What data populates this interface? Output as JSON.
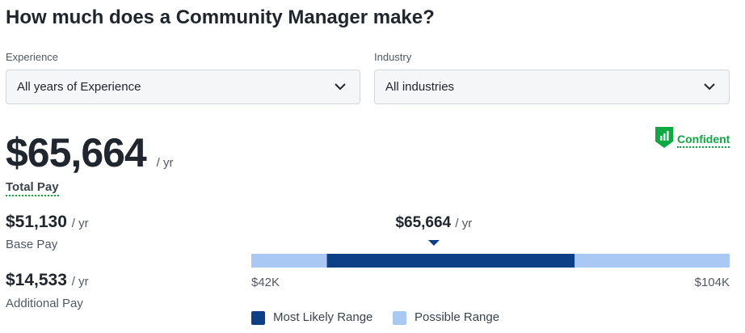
{
  "header": {
    "title": "How much does a Community Manager make?"
  },
  "filters": [
    {
      "label": "Experience",
      "value": "All years of Experience"
    },
    {
      "label": "Industry",
      "value": "All industries"
    }
  ],
  "confidence": "Confident",
  "total": {
    "amount": "$65,664",
    "unit": "/ yr",
    "label": "Total Pay"
  },
  "breakdown": [
    {
      "amount": "$51,130",
      "unit": "/ yr",
      "label": "Base Pay"
    },
    {
      "amount": "$14,533",
      "unit": "/ yr",
      "label": "Additional Pay"
    }
  ],
  "range": {
    "marker": {
      "value": 65664,
      "label": "$65,664",
      "unit": "/ yr"
    },
    "min": {
      "value": 42000,
      "label": "$42K"
    },
    "max": {
      "value": 104000,
      "label": "$104K"
    },
    "most_likely": [
      51800,
      83900
    ],
    "colors": {
      "most_likely": "#0c3f86",
      "possible": "#a9c9f4"
    },
    "legend": [
      "Most Likely Range",
      "Possible Range"
    ]
  }
}
